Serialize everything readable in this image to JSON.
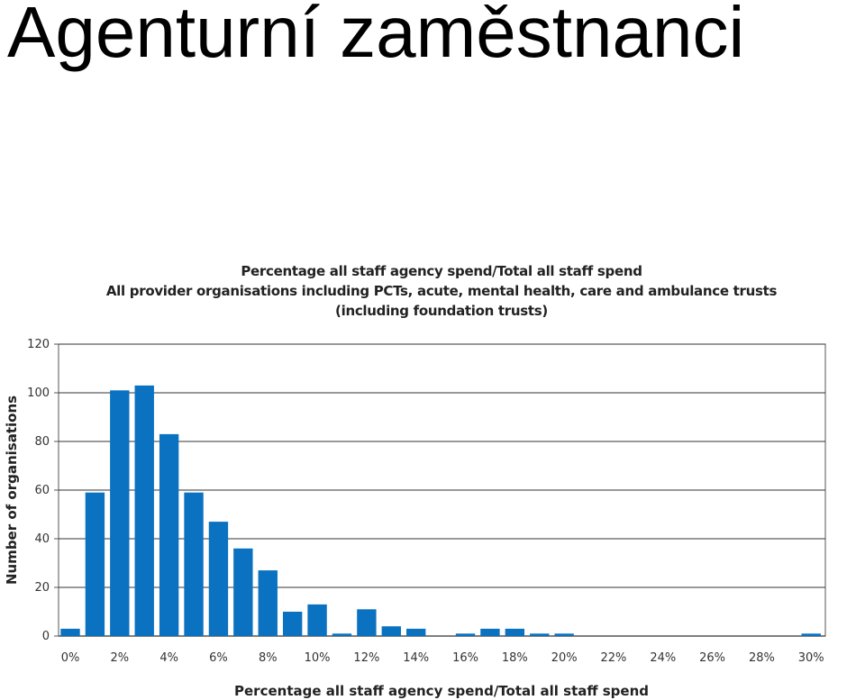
{
  "slide": {
    "title": "Agenturní zaměstnanci"
  },
  "chart_data": {
    "type": "bar",
    "title": [
      "Percentage all staff agency spend/Total all staff spend",
      "All provider organisations including PCTs, acute, mental health, care and ambulance trusts",
      "(including foundation trusts)"
    ],
    "xlabel": "Percentage all staff agency spend/Total all staff spend",
    "ylabel": "Number of organisations",
    "ylim": [
      0,
      120
    ],
    "yticks": [
      "0",
      "20",
      "40",
      "60",
      "80",
      "100",
      "120"
    ],
    "xticks": [
      "0%",
      "2%",
      "4%",
      "6%",
      "8%",
      "10%",
      "12%",
      "14%",
      "16%",
      "18%",
      "20%",
      "22%",
      "24%",
      "26%",
      "28%",
      "30%"
    ],
    "categories": [
      "0%",
      "1%",
      "2%",
      "3%",
      "4%",
      "5%",
      "6%",
      "7%",
      "8%",
      "9%",
      "10%",
      "11%",
      "12%",
      "13%",
      "14%",
      "15%",
      "16%",
      "17%",
      "18%",
      "19%",
      "20%",
      "21%",
      "22%",
      "23%",
      "24%",
      "25%",
      "26%",
      "27%",
      "28%",
      "29%",
      "30%"
    ],
    "values": [
      3,
      59,
      101,
      103,
      83,
      59,
      47,
      36,
      27,
      10,
      13,
      1,
      11,
      4,
      3,
      0,
      1,
      3,
      3,
      1,
      1,
      0,
      0,
      0,
      0,
      0,
      0,
      0,
      0,
      0,
      1
    ],
    "bar_color": "#0a72c0",
    "grid": true
  }
}
